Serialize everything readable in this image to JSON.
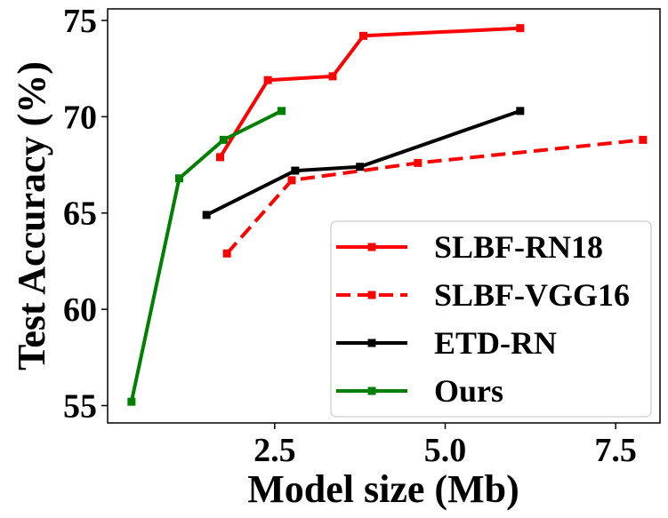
{
  "chart_data": {
    "type": "line",
    "xlabel": "Model size (Mb)",
    "ylabel": "Test Accuracy (%)",
    "xlim": [
      0.05,
      8.15
    ],
    "ylim": [
      54.1,
      75.6
    ],
    "xticks": [
      2.5,
      5.0,
      7.5
    ],
    "xtick_labels": [
      "2.5",
      "5.0",
      "7.5"
    ],
    "yticks": [
      55,
      60,
      65,
      70,
      75
    ],
    "ytick_labels": [
      "55",
      "60",
      "65",
      "70",
      "75"
    ],
    "grid": false,
    "legend_position": "lower-right",
    "series": [
      {
        "name": "SLBF-RN18",
        "color": "#ff0000",
        "linestyle": "solid",
        "marker": "square",
        "x": [
          1.7,
          2.4,
          3.35,
          3.8,
          6.1
        ],
        "y": [
          67.9,
          71.9,
          72.1,
          74.2,
          74.6
        ]
      },
      {
        "name": "SLBF-VGG16",
        "color": "#ff0000",
        "linestyle": "dashed",
        "marker": "square",
        "x": [
          1.8,
          2.75,
          4.6,
          7.9
        ],
        "y": [
          62.9,
          66.7,
          67.6,
          68.8
        ]
      },
      {
        "name": "ETD-RN",
        "color": "#000000",
        "linestyle": "solid",
        "marker": "square",
        "x": [
          1.5,
          2.8,
          3.75,
          6.1
        ],
        "y": [
          64.9,
          67.2,
          67.4,
          70.3
        ]
      },
      {
        "name": "Ours",
        "color": "#008000",
        "linestyle": "solid",
        "marker": "square",
        "x": [
          0.4,
          1.1,
          1.75,
          2.6
        ],
        "y": [
          55.2,
          66.8,
          68.8,
          70.3
        ]
      }
    ]
  }
}
